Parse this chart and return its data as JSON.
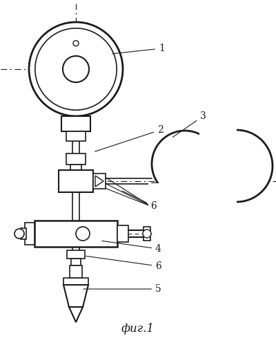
{
  "bg_color": "#ffffff",
  "line_color": "#1a1a1a",
  "fig_label": "фиг.1"
}
